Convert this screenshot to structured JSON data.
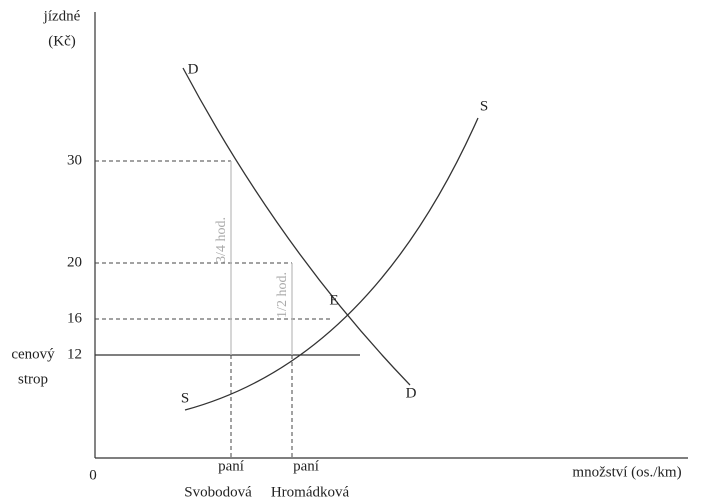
{
  "y_axis": {
    "label_line1": "jízdné",
    "label_line2": "(Kč)",
    "ticks": [
      "30",
      "20",
      "16",
      "12"
    ],
    "ceiling_line1": "cenový",
    "ceiling_line2": "strop",
    "origin": "0"
  },
  "x_axis": {
    "label": "množství (os./km)",
    "people": [
      {
        "line1": "paní",
        "line2": "Svobodová"
      },
      {
        "line1": "paní",
        "line2": "Hromádková"
      }
    ]
  },
  "curves": {
    "demand_top": "D",
    "demand_bottom": "D",
    "supply_top": "S",
    "supply_bottom": "S",
    "equilibrium": "E"
  },
  "wait_labels": [
    "3/4 hod.",
    "1/2 hod."
  ]
}
